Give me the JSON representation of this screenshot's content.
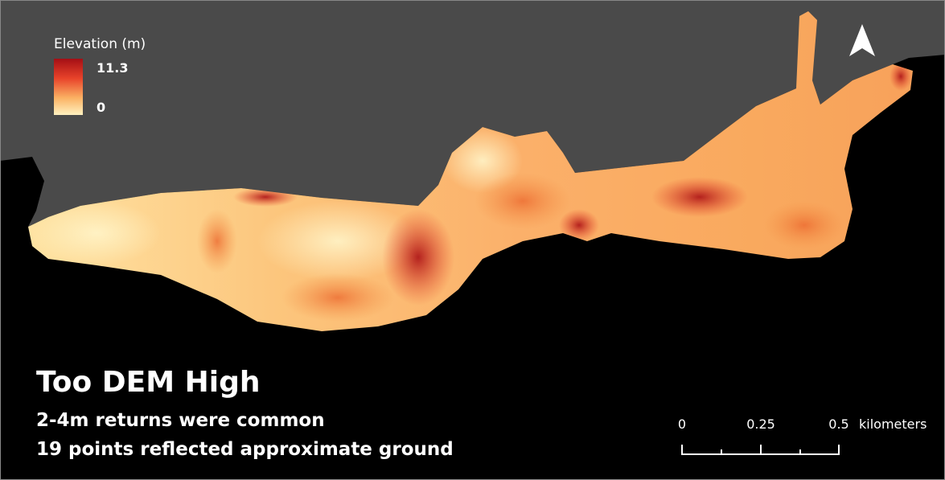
{
  "legend": {
    "title": "Elevation (m)",
    "max_label": "11.3",
    "min_label": "0"
  },
  "title": "Too DEM High",
  "notes": [
    "2-4m returns were common",
    "19 points reflected approximate ground"
  ],
  "scale_bar": {
    "labels": [
      "0",
      "0.25",
      "0.5"
    ],
    "unit": "kilometers"
  }
}
